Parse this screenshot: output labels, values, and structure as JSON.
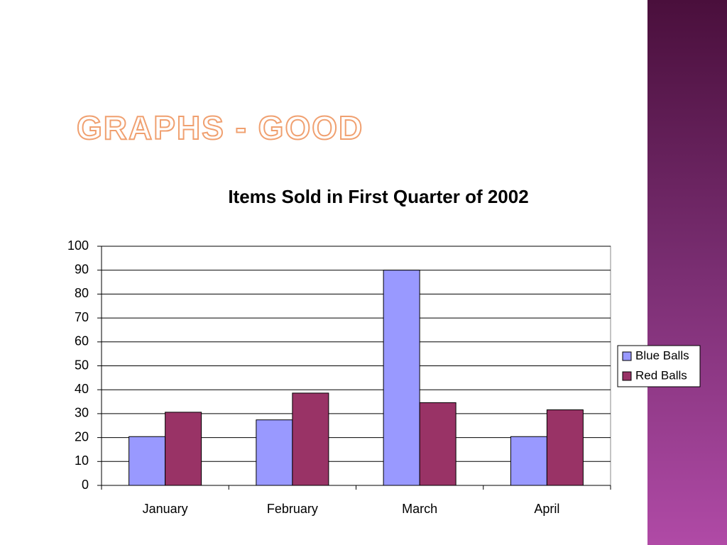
{
  "slide": {
    "title": "GRAPHS - GOOD"
  },
  "chart_data": {
    "type": "bar",
    "title": "Items Sold in First Quarter of 2002",
    "categories": [
      "January",
      "February",
      "March",
      "April"
    ],
    "series": [
      {
        "name": "Blue Balls",
        "color": "#9999ff",
        "values": [
          20.4,
          27.4,
          90,
          20.4
        ]
      },
      {
        "name": "Red Balls",
        "color": "#993366",
        "values": [
          30.6,
          38.6,
          34.6,
          31.6
        ]
      }
    ],
    "ylim": [
      0,
      100
    ],
    "yticks": [
      0,
      10,
      20,
      30,
      40,
      50,
      60,
      70,
      80,
      90,
      100
    ],
    "grid": true,
    "legend": "right"
  }
}
